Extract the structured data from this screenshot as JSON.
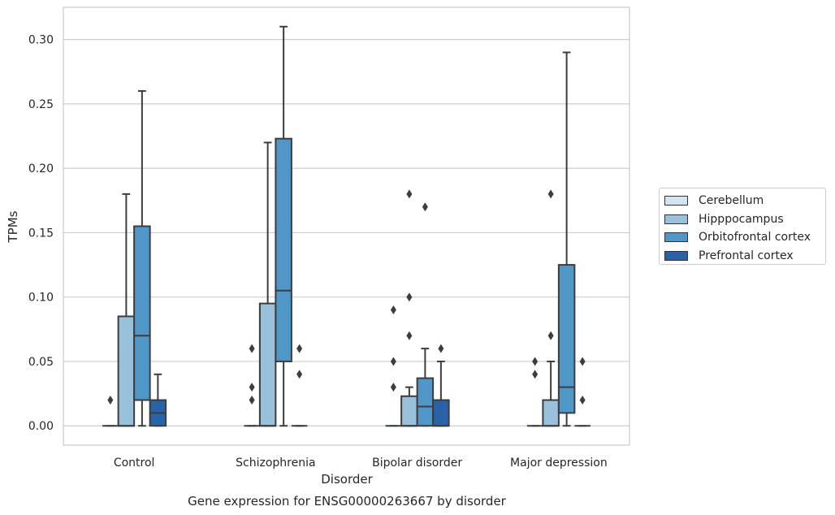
{
  "chart_data": {
    "type": "box",
    "title": "Gene expression for ENSG00000263667 by disorder",
    "xlabel": "Disorder",
    "ylabel": "TPMs",
    "categories": [
      "Control",
      "Schizophrenia",
      "Bipolar disorder",
      "Major depression"
    ],
    "ylim": [
      -0.015,
      0.325
    ],
    "yticks": [
      0.0,
      0.05,
      0.1,
      0.15,
      0.2,
      0.25,
      0.3
    ],
    "ytick_labels": [
      "0.00",
      "0.05",
      "0.10",
      "0.15",
      "0.20",
      "0.25",
      "0.30"
    ],
    "grid": true,
    "legend_position": "right",
    "series": [
      {
        "name": "Cerebellum",
        "color": "#d4e3f1",
        "boxes": [
          {
            "q1": 0,
            "median": 0,
            "q3": 0,
            "whislo": 0,
            "whishi": 0,
            "fliers": [
              0.02
            ]
          },
          {
            "q1": 0,
            "median": 0,
            "q3": 0,
            "whislo": 0,
            "whishi": 0,
            "fliers": [
              0.02,
              0.03,
              0.06
            ]
          },
          {
            "q1": 0,
            "median": 0,
            "q3": 0,
            "whislo": 0,
            "whishi": 0,
            "fliers": [
              0.03,
              0.05,
              0.09
            ]
          },
          {
            "q1": 0,
            "median": 0,
            "q3": 0,
            "whislo": 0,
            "whishi": 0,
            "fliers": [
              0.04,
              0.05
            ]
          }
        ]
      },
      {
        "name": "Hipppocampus",
        "color": "#9ac1db",
        "boxes": [
          {
            "q1": 0,
            "median": 0,
            "q3": 0.085,
            "whislo": 0,
            "whishi": 0.18,
            "fliers": []
          },
          {
            "q1": 0,
            "median": 0,
            "q3": 0.095,
            "whislo": 0,
            "whishi": 0.22,
            "fliers": []
          },
          {
            "q1": 0,
            "median": 0,
            "q3": 0.023,
            "whislo": 0,
            "whishi": 0.03,
            "fliers": [
              0.07,
              0.1,
              0.18
            ]
          },
          {
            "q1": 0,
            "median": 0,
            "q3": 0.02,
            "whislo": 0,
            "whishi": 0.05,
            "fliers": [
              0.07,
              0.18
            ]
          }
        ]
      },
      {
        "name": "Orbitofrontal cortex",
        "color": "#5096c6",
        "boxes": [
          {
            "q1": 0.02,
            "median": 0.07,
            "q3": 0.155,
            "whislo": 0,
            "whishi": 0.26,
            "fliers": []
          },
          {
            "q1": 0.05,
            "median": 0.105,
            "q3": 0.223,
            "whislo": 0,
            "whishi": 0.31,
            "fliers": []
          },
          {
            "q1": 0,
            "median": 0.015,
            "q3": 0.037,
            "whislo": 0,
            "whishi": 0.06,
            "fliers": [
              0.17
            ]
          },
          {
            "q1": 0.01,
            "median": 0.03,
            "q3": 0.125,
            "whislo": 0,
            "whishi": 0.29,
            "fliers": []
          }
        ]
      },
      {
        "name": "Prefrontal cortex",
        "color": "#2763a6",
        "boxes": [
          {
            "q1": 0,
            "median": 0.01,
            "q3": 0.02,
            "whislo": 0,
            "whishi": 0.04,
            "fliers": []
          },
          {
            "q1": 0,
            "median": 0,
            "q3": 0,
            "whislo": 0,
            "whishi": 0,
            "fliers": [
              0.04,
              0.06
            ]
          },
          {
            "q1": 0,
            "median": 0,
            "q3": 0.02,
            "whislo": 0,
            "whishi": 0.05,
            "fliers": [
              0.06
            ]
          },
          {
            "q1": 0,
            "median": 0,
            "q3": 0,
            "whislo": 0,
            "whishi": 0,
            "fliers": [
              0.02,
              0.05
            ]
          }
        ]
      }
    ]
  }
}
